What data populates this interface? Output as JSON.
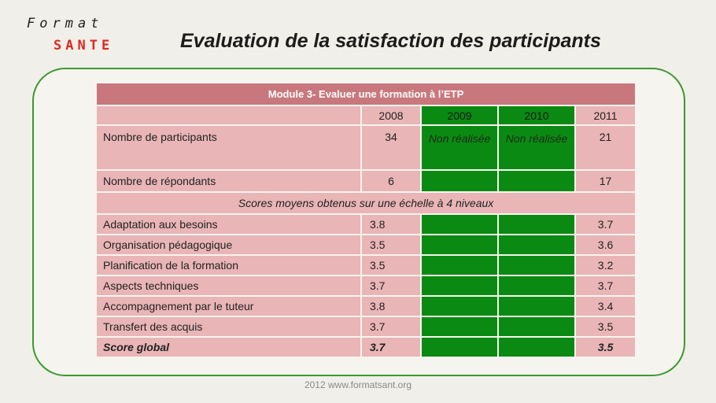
{
  "logo": {
    "line1": "Format",
    "line2": "SANTE"
  },
  "title": "Evaluation  de la satisfaction des participants",
  "table": {
    "header": "Module 3-  Evaluer une formation à l’ETP",
    "years": [
      "2008",
      "2009",
      "2010",
      "2011"
    ],
    "participants": {
      "label": "Nombre de participants",
      "v2008": "34",
      "v2009": "Non réalisée",
      "v2010": "Non réalisée",
      "v2011": "21"
    },
    "respondents": {
      "label": "Nombre de répondants",
      "v2008": "6",
      "v2011": "17"
    },
    "section": "Scores moyens obtenus sur une échelle à 4 niveaux",
    "rows": [
      {
        "label": "Adaptation aux besoins",
        "v2008": "3.8",
        "v2011": "3.7"
      },
      {
        "label": "Organisation pédagogique",
        "v2008": "3.5",
        "v2011": "3.6"
      },
      {
        "label": "Planification de la formation",
        "v2008": "3.5",
        "v2011": "3.2"
      },
      {
        "label": "Aspects techniques",
        "v2008": "3.7",
        "v2011": "3.7"
      },
      {
        "label": "Accompagnement par le tuteur",
        "v2008": "3.8",
        "v2011": "3.4"
      },
      {
        "label": "Transfert des acquis",
        "v2008": "3.7",
        "v2011": "3.5"
      }
    ],
    "global": {
      "label": "Score global",
      "v2008": "3.7",
      "v2011": "3.5"
    }
  },
  "colors": {
    "frame_green": "#3a9a2f",
    "cell_pink": "#e9b5b6",
    "header_rose": "#c8787d",
    "cell_green": "#0a8a12",
    "logo_red": "#e0261f"
  },
  "footer": "2012 www.formatsant.org"
}
